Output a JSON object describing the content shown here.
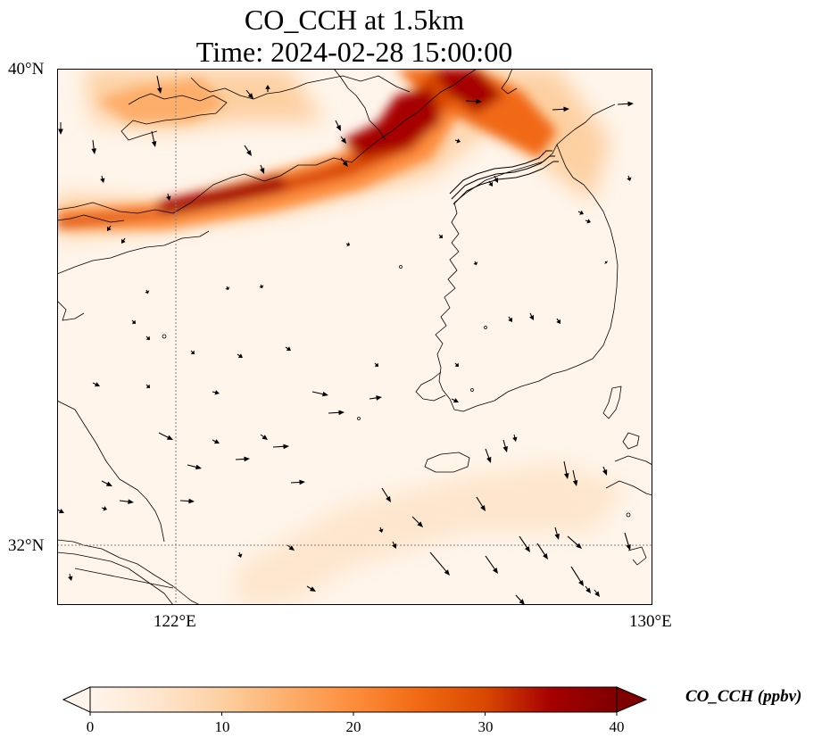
{
  "title": {
    "line1": "CO_CCH at 1.5km",
    "line2": "Time: 2024-02-28 15:00:00"
  },
  "map": {
    "lon_range": [
      120.2,
      130
    ],
    "lat_range": [
      31.1,
      40
    ],
    "gridlines": {
      "lons": [
        122
      ],
      "lats": [
        32
      ]
    },
    "lon_tick_labels": [
      "122°E",
      "130°E"
    ],
    "lat_tick_labels": [
      "40°N",
      "32°N"
    ]
  },
  "colorbar": {
    "label": "CO_CCH (ppbv)",
    "range": [
      0,
      40
    ],
    "tick_labels": [
      "0",
      "10",
      "20",
      "30",
      "40"
    ],
    "tick_values": [
      0,
      10,
      20,
      30,
      40
    ],
    "colormap": [
      "#fff5eb",
      "#fee6ce",
      "#fdd0a2",
      "#fdae6b",
      "#fd8d3c",
      "#f16913",
      "#d94801",
      "#a60000",
      "#7f0000"
    ],
    "extend": "both"
  },
  "colors": {
    "coastline": "#000000",
    "arrows": "#000000",
    "gridline": "#808080"
  }
}
